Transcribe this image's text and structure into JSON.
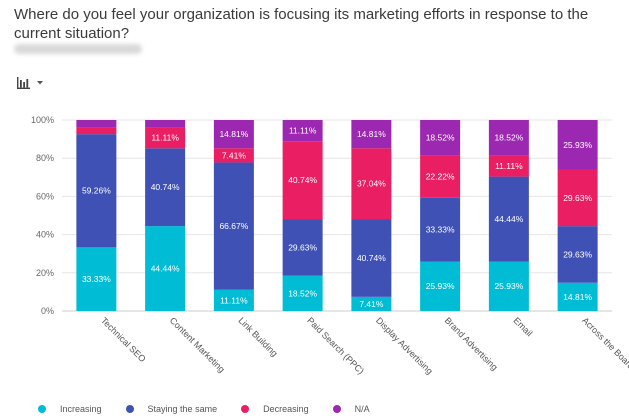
{
  "question": "Where do you feel your organization is focusing its marketing efforts in response to the current situation?",
  "toolbar": {
    "chart_icon": "bar-chart-icon",
    "dropdown_icon": "caret-down-icon"
  },
  "chart_data": {
    "type": "bar",
    "stacked": true,
    "categories": [
      "Technical SEO",
      "Content Marketing",
      "Link Building",
      "Paid Search (PPC)",
      "Display Advertising",
      "Brand Advertising",
      "Email",
      "Across the Board"
    ],
    "series": [
      {
        "name": "Increasing",
        "color": "#00bcd4",
        "values": [
          33.33,
          44.44,
          11.11,
          18.52,
          7.41,
          25.93,
          25.93,
          14.81
        ],
        "labels": [
          "33.33%",
          "44.44%",
          "11.11%",
          "18.52%",
          "7.41%",
          "25.93%",
          "25.93%",
          "14.81%"
        ]
      },
      {
        "name": "Staying the same",
        "color": "#3f51b5",
        "values": [
          59.26,
          40.74,
          66.67,
          29.63,
          40.74,
          33.33,
          44.44,
          29.63
        ],
        "labels": [
          "59.26%",
          "40.74%",
          "66.67%",
          "29.63%",
          "40.74%",
          "33.33%",
          "44.44%",
          "29.63%"
        ]
      },
      {
        "name": "Decreasing",
        "color": "#e91e63",
        "values": [
          3.7,
          11.11,
          7.41,
          40.74,
          37.04,
          22.22,
          11.11,
          29.63
        ],
        "labels": [
          "",
          "11.11%",
          "7.41%",
          "40.74%",
          "37.04%",
          "22.22%",
          "11.11%",
          "29.63%"
        ]
      },
      {
        "name": "N/A",
        "color": "#9c27b0",
        "values": [
          3.71,
          3.71,
          14.81,
          11.11,
          14.81,
          18.52,
          18.52,
          25.93
        ],
        "labels": [
          "",
          "",
          "14.81%",
          "11.11%",
          "14.81%",
          "18.52%",
          "18.52%",
          "25.93%"
        ]
      }
    ],
    "yticks": [
      "0%",
      "20%",
      "40%",
      "60%",
      "80%",
      "100%"
    ],
    "ylim": [
      0,
      100
    ],
    "grid": true,
    "legend_position": "bottom-left"
  }
}
